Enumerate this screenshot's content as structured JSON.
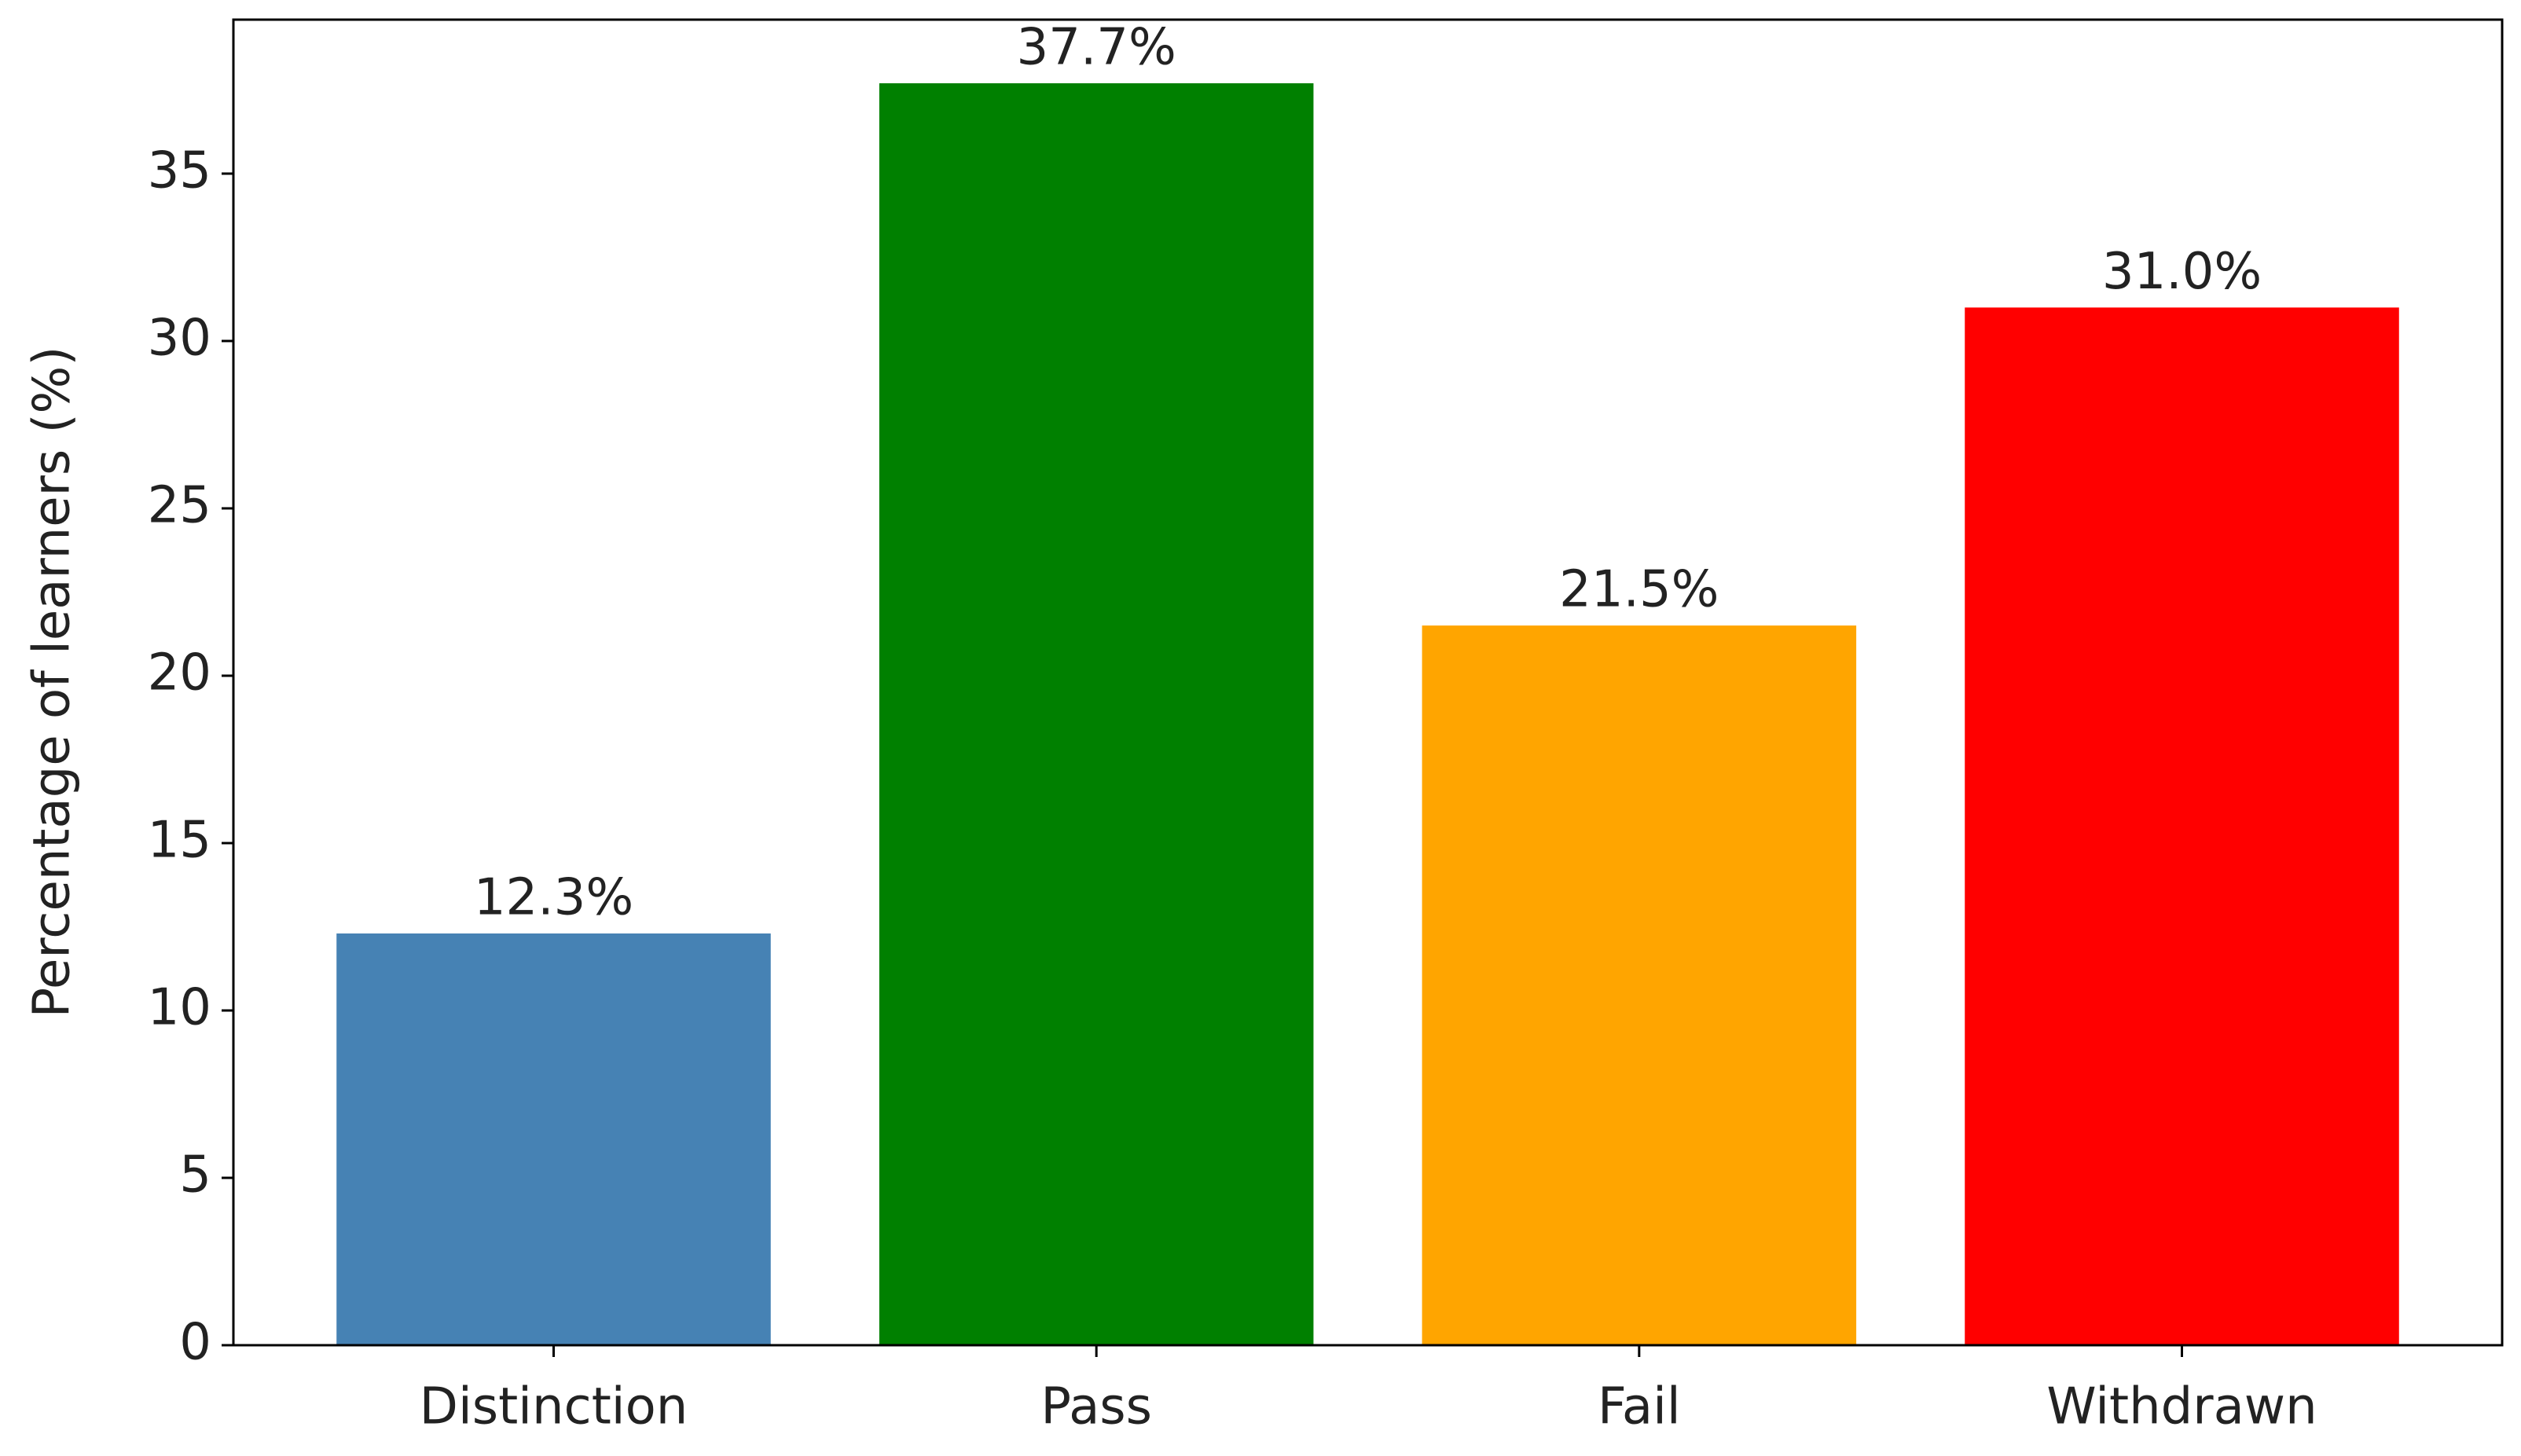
{
  "chart_data": {
    "type": "bar",
    "y_label": "Percentage of learners (%)",
    "categories": [
      "Distinction",
      "Pass",
      "Fail",
      "Withdrawn"
    ],
    "values": [
      12.3,
      37.7,
      21.5,
      31.0
    ],
    "value_labels": [
      "12.3%",
      "37.7%",
      "21.5%",
      "31.0%"
    ],
    "colors": [
      "#4682b4",
      "#008000",
      "#ffa500",
      "#ff0000"
    ],
    "ylim": [
      0,
      39.6
    ],
    "yticks": [
      0,
      5,
      10,
      15,
      20,
      25,
      30,
      35
    ],
    "grid": false
  }
}
